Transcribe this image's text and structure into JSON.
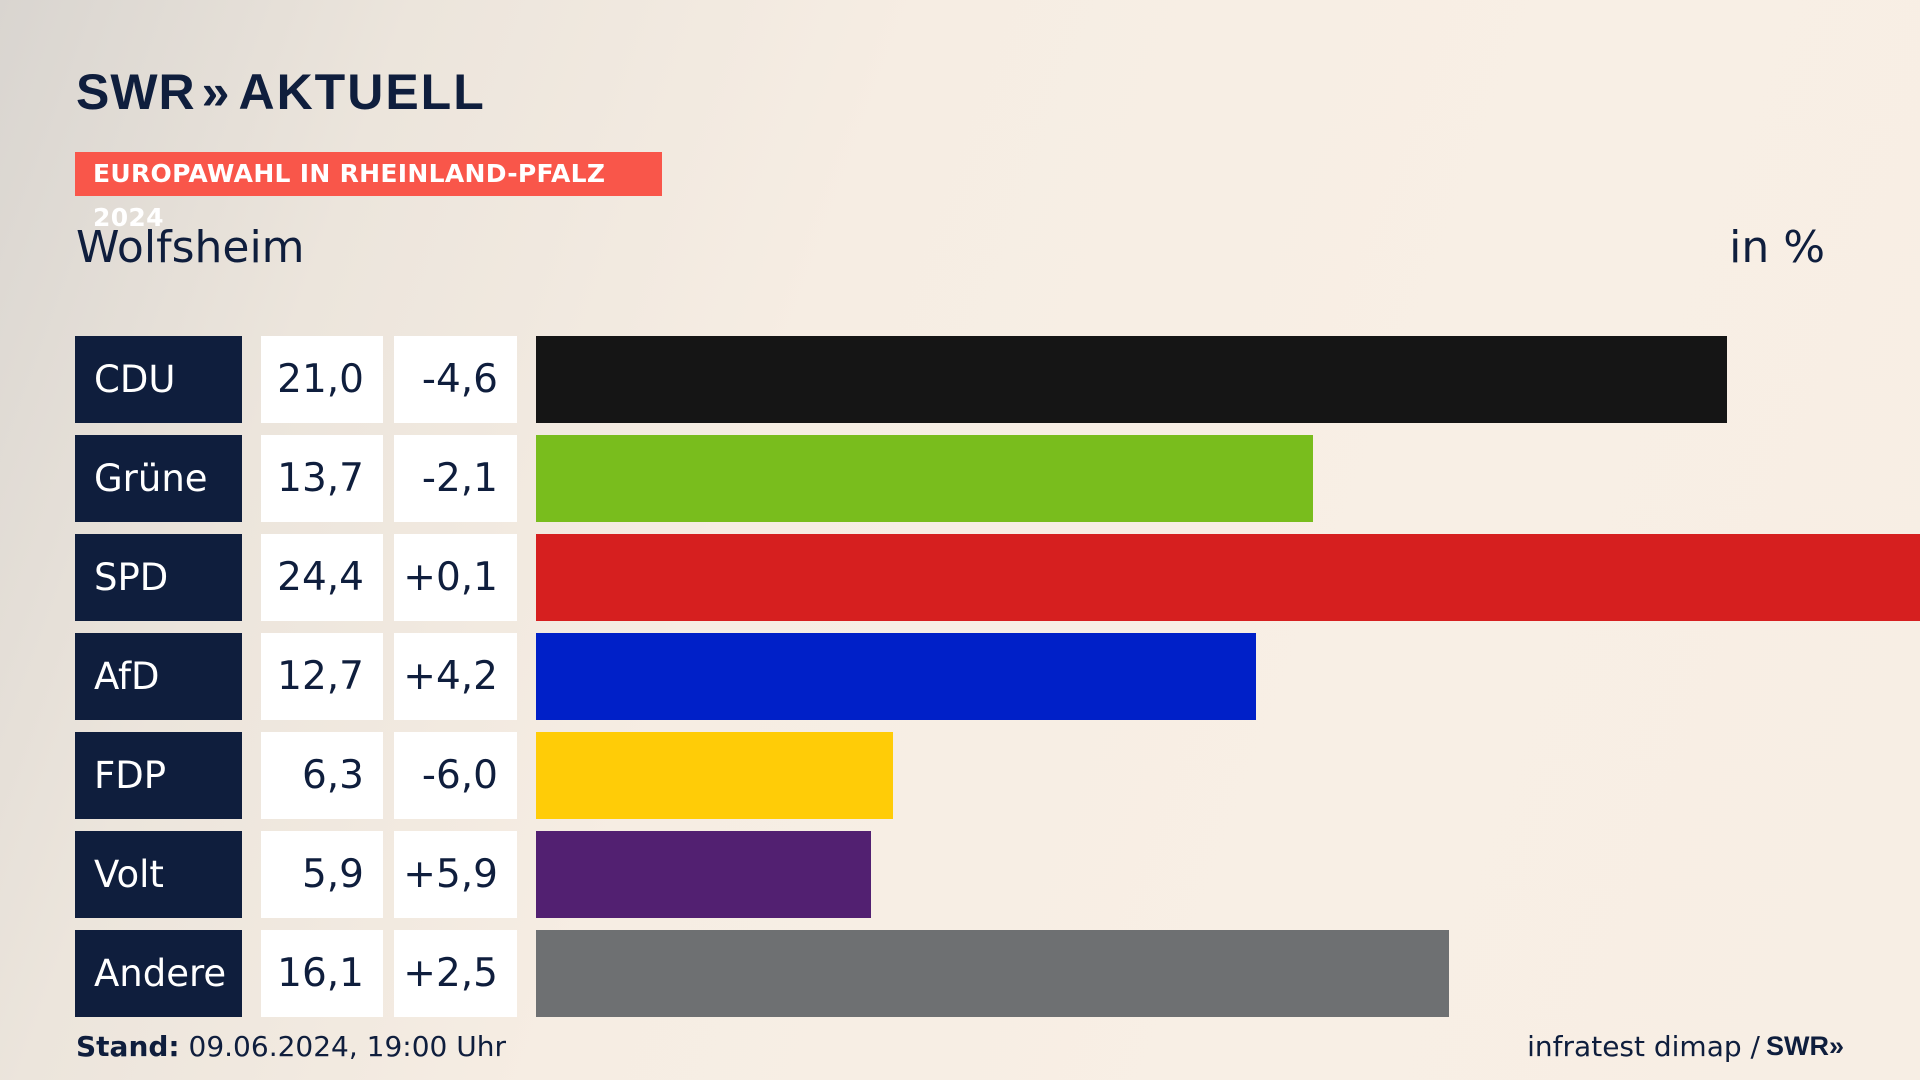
{
  "header": {
    "logo_swr": "SWR",
    "logo_chevrons": "»",
    "logo_aktuell": "AKTUELL",
    "tag": "EUROPAWAHL IN RHEINLAND-PFALZ 2024",
    "place": "Wolfsheim",
    "unit": "in %"
  },
  "colors": {
    "navy": "#0f1e3d",
    "tag_red": "#f9564a"
  },
  "chart_data": {
    "type": "bar",
    "orientation": "horizontal",
    "title": "Wolfsheim",
    "unit": "in %",
    "rows": [
      {
        "party": "CDU",
        "value": 21.0,
        "value_label": "21,0",
        "diff_label": "-4,6",
        "color": "#151515"
      },
      {
        "party": "Grüne",
        "value": 13.7,
        "value_label": "13,7",
        "diff_label": "-2,1",
        "color": "#79bd1d"
      },
      {
        "party": "SPD",
        "value": 24.4,
        "value_label": "24,4",
        "diff_label": "+0,1",
        "color": "#d61f1f"
      },
      {
        "party": "AfD",
        "value": 12.7,
        "value_label": "12,7",
        "diff_label": "+4,2",
        "color": "#0020c8"
      },
      {
        "party": "FDP",
        "value": 6.3,
        "value_label": "6,3",
        "diff_label": "-6,0",
        "color": "#ffcc07"
      },
      {
        "party": "Volt",
        "value": 5.9,
        "value_label": "5,9",
        "diff_label": "+5,9",
        "color": "#522071"
      },
      {
        "party": "Andere",
        "value": 16.1,
        "value_label": "16,1",
        "diff_label": "+2,5",
        "color": "#6e7072"
      }
    ],
    "xlim": [
      0,
      24.4
    ]
  },
  "footer": {
    "stand_label": "Stand:",
    "stand_value": "09.06.2024, 19:00 Uhr",
    "source": "infratest dimap /",
    "source_logo": "SWR»"
  }
}
